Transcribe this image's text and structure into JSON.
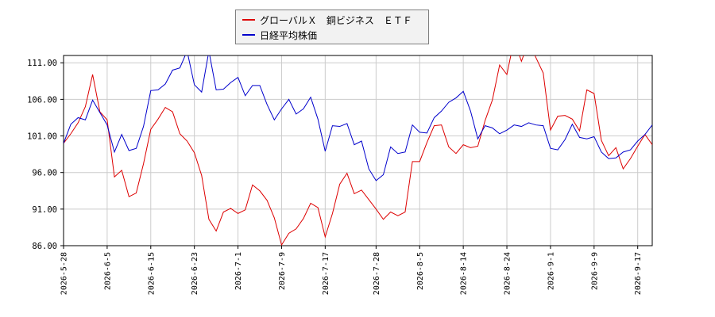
{
  "chart_data": {
    "type": "line",
    "title": "",
    "xlabel": "",
    "ylabel": "",
    "ylim": [
      86.0,
      112.0
    ],
    "yticks": [
      "86.00",
      "91.00",
      "96.00",
      "101.00",
      "106.00",
      "111.00"
    ],
    "xticks": [
      "2026-5-28",
      "2026-6-5",
      "2026-6-15",
      "2026-6-23",
      "2026-7-1",
      "2026-7-9",
      "2026-7-17",
      "2026-7-28",
      "2026-8-5",
      "2026-8-14",
      "2026-8-24",
      "2026-9-1",
      "2026-9-9",
      "2026-9-17"
    ],
    "xtick_index": [
      0,
      6,
      12,
      18,
      24,
      30,
      36,
      43,
      49,
      55,
      61,
      67,
      73,
      79
    ],
    "grid": true,
    "legend_position": "top-center",
    "series": [
      {
        "name": "グローバルＸ　銅ビジネス　ＥＴＦ",
        "color": "#dd0000",
        "values": [
          100.0,
          101.3,
          102.8,
          105.0,
          109.4,
          104.3,
          103.2,
          95.4,
          96.3,
          92.7,
          93.2,
          97.2,
          101.9,
          103.3,
          104.9,
          104.3,
          101.3,
          100.3,
          98.7,
          95.6,
          89.6,
          88.0,
          90.6,
          91.1,
          90.4,
          90.9,
          94.3,
          93.5,
          92.2,
          89.8,
          86.1,
          87.7,
          88.3,
          89.7,
          91.8,
          91.2,
          87.2,
          90.4,
          94.4,
          95.9,
          93.1,
          93.6,
          92.3,
          91.0,
          89.6,
          90.6,
          90.1,
          90.6,
          97.5,
          97.5,
          100.1,
          102.4,
          102.5,
          99.5,
          98.6,
          99.8,
          99.4,
          99.6,
          103.1,
          105.9,
          110.7,
          109.4,
          114.2,
          111.2,
          113.9,
          111.7,
          109.6,
          101.8,
          103.7,
          103.8,
          103.3,
          101.7,
          107.3,
          106.8,
          100.4,
          98.3,
          99.4,
          96.5,
          97.9,
          99.6,
          101.2,
          99.8
        ]
      },
      {
        "name": "日経平均株価",
        "color": "#0000cc",
        "values": [
          100.0,
          102.6,
          103.5,
          103.2,
          105.9,
          104.2,
          102.5,
          98.8,
          101.2,
          99.0,
          99.3,
          102.3,
          107.2,
          107.3,
          108.1,
          110.0,
          110.3,
          112.6,
          108.0,
          107.0,
          112.6,
          107.3,
          107.4,
          108.3,
          109.0,
          106.5,
          107.9,
          107.9,
          105.3,
          103.2,
          104.7,
          106.0,
          104.0,
          104.7,
          106.3,
          103.3,
          98.9,
          102.4,
          102.3,
          102.7,
          99.8,
          100.3,
          96.5,
          94.9,
          95.7,
          99.5,
          98.6,
          98.8,
          102.5,
          101.5,
          101.4,
          103.5,
          104.4,
          105.6,
          106.2,
          107.1,
          104.4,
          100.6,
          102.4,
          102.1,
          101.3,
          101.8,
          102.5,
          102.3,
          102.8,
          102.5,
          102.4,
          99.3,
          99.1,
          100.5,
          102.6,
          100.8,
          100.6,
          100.9,
          98.8,
          97.9,
          98.0,
          98.8,
          99.1,
          100.3,
          101.2,
          102.5
        ]
      }
    ]
  },
  "legend": {
    "items": [
      {
        "label": "グローバルＸ　銅ビジネス　ＥＴＦ",
        "color": "#dd0000"
      },
      {
        "label": "日経平均株価",
        "color": "#0000cc"
      }
    ]
  }
}
